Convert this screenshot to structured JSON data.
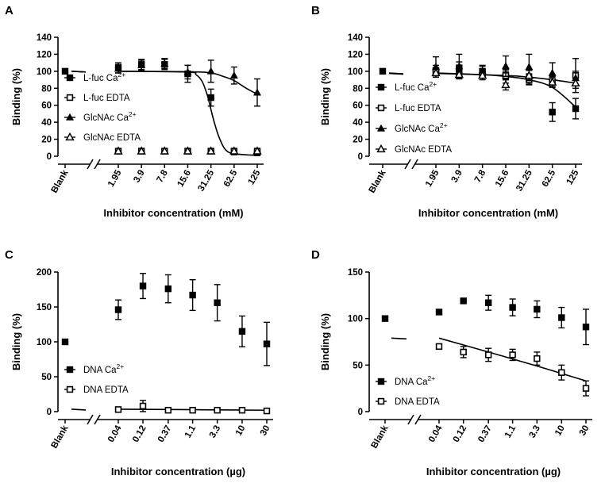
{
  "chart_data": [
    {
      "panel": "A",
      "type": "scatter",
      "ylabel": "Binding (%)",
      "xlabel": "Inhibitor concentration (mM)",
      "ylim": [
        0,
        140
      ],
      "yticks": [
        "0",
        "20",
        "40",
        "60",
        "80",
        "100",
        "120",
        "140"
      ],
      "categories": [
        "Blank",
        "1.95",
        "3.9",
        "7.8",
        "15.6",
        "31.25",
        "62.5",
        "125"
      ],
      "x_log": [
        1.95,
        3.9,
        7.8,
        15.6,
        31.25,
        62.5,
        125
      ],
      "blank_value": 100,
      "legend_placement": "center-left",
      "series": [
        {
          "name": "L-fuc Ca2+",
          "label_base": "L-fuc Ca",
          "label_sup": "2+",
          "marker": "square-filled",
          "values": [
            104,
            108,
            108,
            97,
            69,
            5,
            4
          ],
          "errors": [
            6,
            6,
            6,
            10,
            10,
            0,
            0
          ]
        },
        {
          "name": "L-fuc EDTA",
          "label_base": "L-fuc EDTA",
          "label_sup": "",
          "marker": "square-open",
          "values": [
            6,
            6,
            6,
            6,
            6,
            6,
            6
          ],
          "errors": [
            0,
            0,
            0,
            0,
            0,
            0,
            0
          ]
        },
        {
          "name": "GlcNAc Ca2+",
          "label_base": "GlcNAc Ca",
          "label_sup": "2+",
          "marker": "triangle-filled",
          "values": [
            103,
            107,
            109,
            99,
            100,
            95,
            75
          ],
          "errors": [
            5,
            6,
            6,
            8,
            13,
            10,
            16
          ]
        },
        {
          "name": "GlcNAc EDTA",
          "label_base": "GlcNAc EDTA",
          "label_sup": "",
          "marker": "triangle-open",
          "values": [
            6,
            6,
            6,
            6,
            6,
            6,
            6
          ],
          "errors": [
            0,
            0,
            0,
            0,
            0,
            0,
            0
          ]
        }
      ],
      "fits": [
        {
          "name": "L-fuc Ca2+ fit",
          "from": [
            1.95,
            100
          ],
          "to": [
            125,
            1
          ],
          "points": [
            [
              1.95,
              100
            ],
            [
              15.6,
              99
            ],
            [
              20,
              96
            ],
            [
              24,
              88
            ],
            [
              28,
              72
            ],
            [
              31.25,
              55
            ],
            [
              35,
              38
            ],
            [
              40,
              22
            ],
            [
              48,
              8
            ],
            [
              62.5,
              3
            ],
            [
              125,
              1
            ]
          ]
        },
        {
          "name": "GlcNAc Ca2+ fit",
          "points": [
            [
              1.95,
              100
            ],
            [
              15.6,
              99.5
            ],
            [
              31.25,
              98
            ],
            [
              45,
              94
            ],
            [
              62.5,
              89
            ],
            [
              90,
              80
            ],
            [
              125,
              73
            ]
          ]
        }
      ]
    },
    {
      "panel": "B",
      "type": "scatter",
      "ylabel": "Binding (%)",
      "xlabel": "Inhibitor concentration (mM)",
      "ylim": [
        0,
        140
      ],
      "yticks": [
        "0",
        "20",
        "40",
        "60",
        "80",
        "100",
        "120",
        "140"
      ],
      "categories": [
        "Blank",
        "1.95",
        "3.9",
        "7.8",
        "15.6",
        "31.25",
        "62.5",
        "125"
      ],
      "x_log": [
        1.95,
        3.9,
        7.8,
        15.6,
        31.25,
        62.5,
        125
      ],
      "blank_value": 100,
      "legend_placement": "center-left",
      "series": [
        {
          "name": "L-fuc Ca2+",
          "label_base": "L-fuc Ca",
          "label_sup": "2+",
          "marker": "square-filled",
          "values": [
            101,
            104,
            100,
            94,
            91,
            52,
            56
          ],
          "errors": [
            6,
            7,
            6,
            8,
            6,
            11,
            12
          ]
        },
        {
          "name": "L-fuc EDTA",
          "label_base": "L-fuc EDTA",
          "label_sup": "",
          "marker": "square-open",
          "values": [
            100,
            96,
            96,
            95,
            90,
            88,
            95
          ],
          "errors": [
            4,
            4,
            4,
            5,
            6,
            6,
            20
          ]
        },
        {
          "name": "GlcNAc Ca2+",
          "label_base": "GlcNAc Ca",
          "label_sup": "2+",
          "marker": "triangle-filled",
          "values": [
            105,
            106,
            101,
            106,
            105,
            98,
            92
          ],
          "errors": [
            12,
            14,
            6,
            12,
            15,
            12,
            8
          ]
        },
        {
          "name": "GlcNAc EDTA",
          "label_base": "GlcNAc EDTA",
          "label_sup": "",
          "marker": "triangle-open",
          "values": [
            98,
            96,
            95,
            84,
            95,
            87,
            86
          ],
          "errors": [
            5,
            5,
            5,
            6,
            6,
            6,
            6
          ]
        }
      ],
      "fits": [
        {
          "name": "Ca fit",
          "points": [
            [
              1.95,
              98
            ],
            [
              7.8,
              96
            ],
            [
              15.6,
              94
            ],
            [
              31.25,
              90
            ],
            [
              62.5,
              81
            ],
            [
              125,
              58
            ]
          ]
        },
        {
          "name": "EDTA fit",
          "points": [
            [
              1.95,
              97.5
            ],
            [
              15.6,
              95
            ],
            [
              31.25,
              93
            ],
            [
              62.5,
              90
            ],
            [
              125,
              86
            ]
          ]
        }
      ]
    },
    {
      "panel": "C",
      "type": "scatter",
      "ylabel": "Binding (%)",
      "xlabel": "Inhibitor concentration (µg)",
      "ylim": [
        0,
        200
      ],
      "yticks": [
        "0",
        "50",
        "100",
        "150",
        "200"
      ],
      "categories": [
        "Blank",
        "0.04",
        "0.12",
        "0.37",
        "1.1",
        "3.3",
        "10",
        "30"
      ],
      "x_log": [
        0.04,
        0.12,
        0.37,
        1.1,
        3.3,
        10,
        30
      ],
      "blank_value": 100,
      "legend_placement": "bottom-left",
      "series": [
        {
          "name": "DNA Ca2+",
          "label_base": "DNA Ca",
          "label_sup": "2+",
          "marker": "square-filled",
          "values": [
            146,
            180,
            176,
            167,
            156,
            115,
            97
          ],
          "errors": [
            14,
            18,
            20,
            22,
            26,
            22,
            31
          ]
        },
        {
          "name": "DNA EDTA",
          "label_base": "DNA EDTA",
          "label_sup": "",
          "marker": "square-open",
          "values": [
            3,
            8,
            2,
            2,
            2,
            2,
            1
          ],
          "errors": [
            0,
            8,
            0,
            0,
            0,
            0,
            0
          ]
        }
      ],
      "fits": [
        {
          "name": "EDTA fit",
          "points": [
            [
              0.04,
              3.5
            ],
            [
              0.37,
              3
            ],
            [
              3.3,
              2.5
            ],
            [
              30,
              2
            ]
          ]
        }
      ]
    },
    {
      "panel": "D",
      "type": "scatter",
      "ylabel": "Binding (%)",
      "xlabel": "Inhibitor concentration (µg)",
      "ylim": [
        0,
        150
      ],
      "yticks": [
        "0",
        "50",
        "100",
        "150"
      ],
      "categories": [
        "Blank",
        "0.04",
        "0.12",
        "0.37",
        "1.1",
        "3.3",
        "10",
        "30"
      ],
      "x_log": [
        0.04,
        0.12,
        0.37,
        1.1,
        3.3,
        10,
        30
      ],
      "blank_value": 100,
      "legend_placement": "bottom-left",
      "series": [
        {
          "name": "DNA Ca2+",
          "label_base": "DNA Ca",
          "label_sup": "2+",
          "marker": "square-filled",
          "values": [
            107,
            119,
            117,
            112,
            110,
            101,
            91
          ],
          "errors": [
            0,
            0,
            8,
            9,
            9,
            11,
            19
          ]
        },
        {
          "name": "DNA EDTA",
          "label_base": "DNA EDTA",
          "label_sup": "",
          "marker": "square-open",
          "values": [
            70,
            64,
            61,
            61,
            57,
            42,
            25
          ],
          "errors": [
            0,
            6,
            7,
            6,
            7,
            8,
            8
          ]
        }
      ],
      "fits": [
        {
          "name": "EDTA fit",
          "points": [
            [
              0.04,
              79
            ],
            [
              0.37,
              64
            ],
            [
              3.3,
              49
            ],
            [
              30,
              33
            ]
          ]
        }
      ]
    }
  ]
}
